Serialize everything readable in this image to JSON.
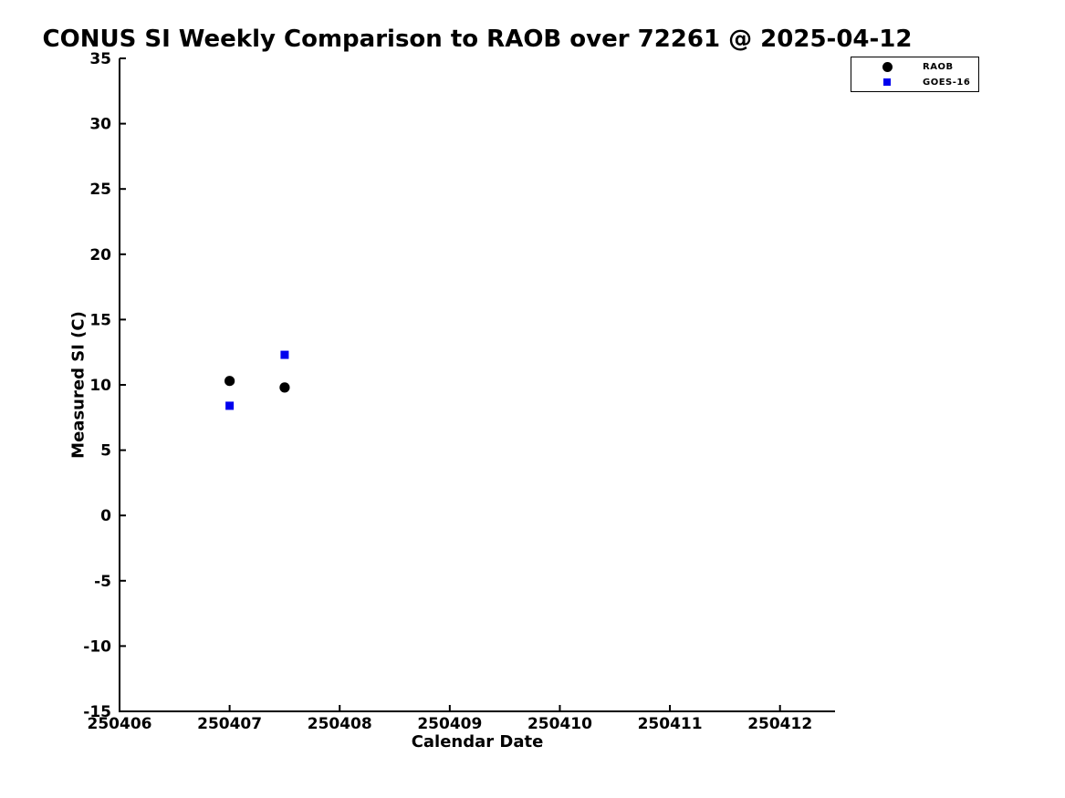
{
  "chart_data": {
    "type": "scatter",
    "title": "CONUS SI Weekly Comparison to RAOB over 72261 @ 2025-04-12",
    "xlabel": "Calendar Date",
    "ylabel": "Measured SI (C)",
    "xlim": [
      250406,
      250412.5
    ],
    "ylim": [
      -15,
      35
    ],
    "x_ticks": [
      250406,
      250407,
      250408,
      250409,
      250410,
      250411,
      250412
    ],
    "y_ticks": [
      -15,
      -10,
      -5,
      0,
      5,
      10,
      15,
      20,
      25,
      30,
      35
    ],
    "grid": false,
    "legend_position": "top-right",
    "series": [
      {
        "name": "RAOB",
        "marker": "circle",
        "color": "#000000",
        "points": [
          [
            250407.0,
            10.3
          ],
          [
            250407.5,
            9.8
          ]
        ]
      },
      {
        "name": "GOES-16",
        "marker": "square",
        "color": "#0000ee",
        "points": [
          [
            250407.0,
            8.4
          ],
          [
            250407.5,
            12.3
          ]
        ]
      }
    ]
  },
  "colors": {
    "axis": "#000000",
    "background": "#ffffff",
    "raob": "#000000",
    "goes16": "#0000ee"
  }
}
